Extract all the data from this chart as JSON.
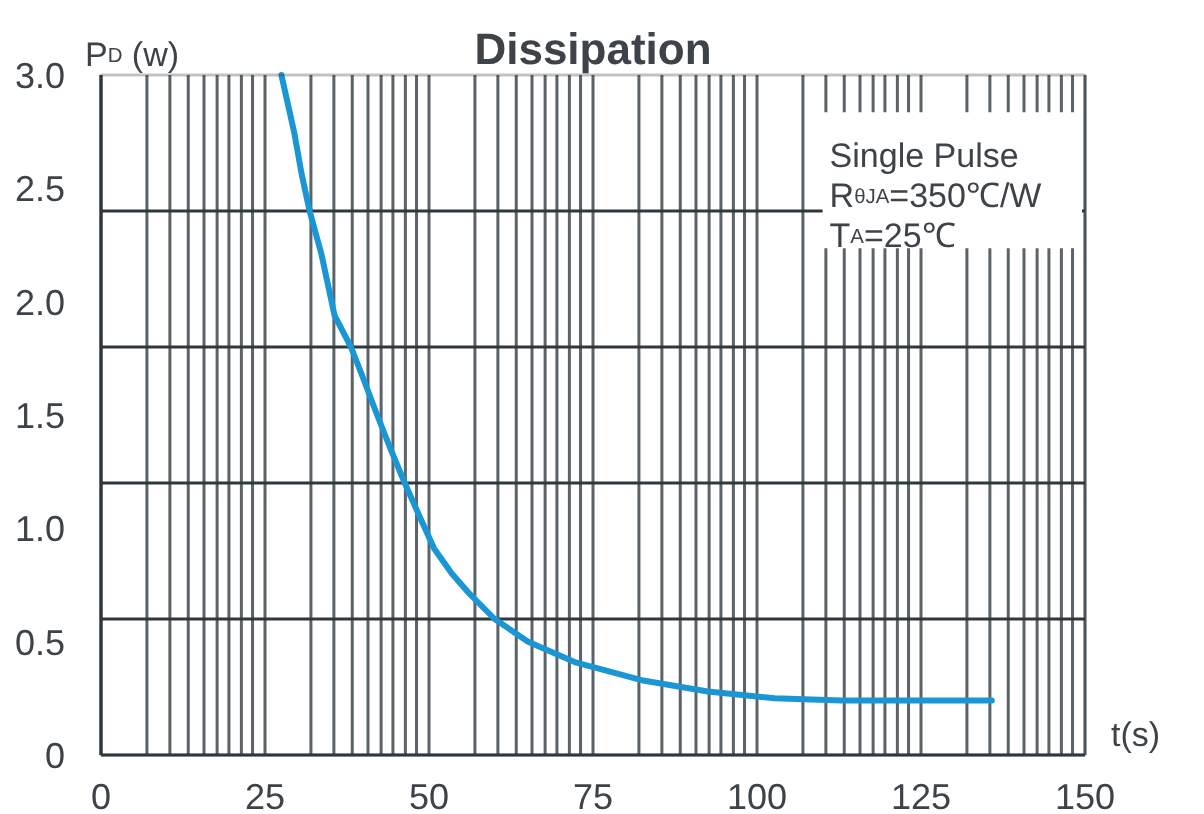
{
  "chart_data": {
    "type": "line",
    "title": "Dissipation",
    "xlabel": "t(s)",
    "ylabel": "P$_{D}$ (w)",
    "annotations": [
      "Single Pulse",
      "R$_{θJA}$=350℃/W",
      "T$_{A}$=25℃"
    ],
    "x": [
      27.5,
      29.5,
      30.6,
      31.8,
      33.6,
      35.6,
      38.1,
      40.0,
      41.7,
      44.0,
      46.3,
      48.6,
      50.8,
      53.5,
      55.9,
      60.0,
      65.1,
      72.2,
      82.4,
      92.5,
      102.7,
      112.9,
      123.0,
      135.8
    ],
    "series": [
      {
        "color": "#1a96d4",
        "values": [
          3.0,
          2.74,
          2.56,
          2.4,
          2.21,
          1.94,
          1.8,
          1.66,
          1.53,
          1.36,
          1.2,
          1.05,
          0.91,
          0.8,
          0.72,
          0.6,
          0.5,
          0.41,
          0.33,
          0.28,
          0.25,
          0.24,
          0.24,
          0.24
        ]
      }
    ],
    "xlim": [
      0,
      150
    ],
    "ylim": [
      0,
      3
    ],
    "xticks": [
      0,
      {
        "value": 7.0,
        "label": null
      },
      {
        "value": 10.5,
        "label": null
      },
      {
        "value": 13.3,
        "label": null
      },
      {
        "value": 15.7,
        "label": null
      },
      {
        "value": 17.7,
        "label": null
      },
      {
        "value": 19.5,
        "label": null
      },
      {
        "value": 21.4,
        "label": null
      },
      {
        "value": 23.1,
        "label": null
      },
      25,
      {
        "value": 32.0,
        "label": null
      },
      {
        "value": 35.5,
        "label": null
      },
      {
        "value": 38.3,
        "label": null
      },
      {
        "value": 40.7,
        "label": null
      },
      {
        "value": 42.7,
        "label": null
      },
      {
        "value": 44.5,
        "label": null
      },
      {
        "value": 46.4,
        "label": null
      },
      {
        "value": 48.1,
        "label": null
      },
      50,
      {
        "value": 57.0,
        "label": null
      },
      {
        "value": 60.5,
        "label": null
      },
      {
        "value": 63.3,
        "label": null
      },
      {
        "value": 65.7,
        "label": null
      },
      {
        "value": 67.7,
        "label": null
      },
      {
        "value": 69.5,
        "label": null
      },
      {
        "value": 71.4,
        "label": null
      },
      {
        "value": 73.1,
        "label": null
      },
      75,
      {
        "value": 82.0,
        "label": null
      },
      {
        "value": 85.5,
        "label": null
      },
      {
        "value": 88.3,
        "label": null
      },
      {
        "value": 90.7,
        "label": null
      },
      {
        "value": 92.7,
        "label": null
      },
      {
        "value": 94.5,
        "label": null
      },
      {
        "value": 96.4,
        "label": null
      },
      {
        "value": 98.1,
        "label": null
      },
      100,
      {
        "value": 107.0,
        "label": null
      },
      {
        "value": 110.5,
        "label": null
      },
      {
        "value": 113.3,
        "label": null
      },
      {
        "value": 115.7,
        "label": null
      },
      {
        "value": 117.7,
        "label": null
      },
      {
        "value": 119.5,
        "label": null
      },
      {
        "value": 121.4,
        "label": null
      },
      {
        "value": 123.1,
        "label": null
      },
      125,
      {
        "value": 132.0,
        "label": null
      },
      {
        "value": 135.5,
        "label": null
      },
      {
        "value": 138.3,
        "label": null
      },
      {
        "value": 140.7,
        "label": null
      },
      {
        "value": 142.7,
        "label": null
      },
      {
        "value": 144.5,
        "label": null
      },
      {
        "value": 146.4,
        "label": null
      },
      {
        "value": 148.1,
        "label": null
      },
      150
    ],
    "yticks": [
      0,
      0.5,
      {
        "value": 1,
        "label": "1.0"
      },
      1.5,
      {
        "value": 2,
        "label": "2.0"
      },
      2.5,
      {
        "value": 3,
        "label": "3.0"
      }
    ],
    "grid": "x",
    "ref_lines": [
      {
        "axis": "y",
        "value": 0.6,
        "color": "#2f383d"
      },
      {
        "axis": "y",
        "value": 1.2,
        "color": "#2f383d"
      },
      {
        "axis": "y",
        "value": 1.8,
        "color": "#2f383d"
      },
      {
        "axis": "y",
        "value": 2.4,
        "color": "#2f383d"
      }
    ]
  }
}
